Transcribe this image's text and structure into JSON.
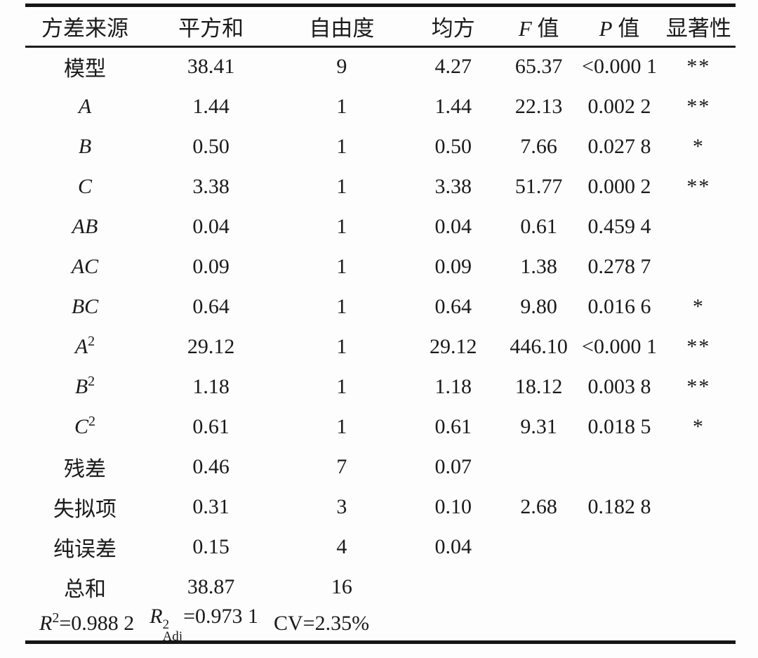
{
  "table": {
    "columns": [
      {
        "italic": "",
        "label": "方差来源"
      },
      {
        "italic": "",
        "label": "平方和"
      },
      {
        "italic": "",
        "label": "自由度"
      },
      {
        "italic": "",
        "label": "均方"
      },
      {
        "italic": "F",
        "label": " 值"
      },
      {
        "italic": "P",
        "label": " 值"
      },
      {
        "italic": "",
        "label": "显著性"
      }
    ],
    "rows": [
      {
        "source": "模型",
        "source_italic": false,
        "source_sup": "",
        "ss": "38.41",
        "df": "9",
        "ms": "4.27",
        "f": "65.37",
        "p": "<0.000 1",
        "sig": "**"
      },
      {
        "source": "A",
        "source_italic": true,
        "source_sup": "",
        "ss": "1.44",
        "df": "1",
        "ms": "1.44",
        "f": "22.13",
        "p": "0.002 2",
        "sig": "**"
      },
      {
        "source": "B",
        "source_italic": true,
        "source_sup": "",
        "ss": "0.50",
        "df": "1",
        "ms": "0.50",
        "f": "7.66",
        "p": "0.027 8",
        "sig": "*"
      },
      {
        "source": "C",
        "source_italic": true,
        "source_sup": "",
        "ss": "3.38",
        "df": "1",
        "ms": "3.38",
        "f": "51.77",
        "p": "0.000 2",
        "sig": "**"
      },
      {
        "source": "AB",
        "source_italic": true,
        "source_sup": "",
        "ss": "0.04",
        "df": "1",
        "ms": "0.04",
        "f": "0.61",
        "p": "0.459 4",
        "sig": ""
      },
      {
        "source": "AC",
        "source_italic": true,
        "source_sup": "",
        "ss": "0.09",
        "df": "1",
        "ms": "0.09",
        "f": "1.38",
        "p": "0.278 7",
        "sig": ""
      },
      {
        "source": "BC",
        "source_italic": true,
        "source_sup": "",
        "ss": "0.64",
        "df": "1",
        "ms": "0.64",
        "f": "9.80",
        "p": "0.016 6",
        "sig": "*"
      },
      {
        "source": "A",
        "source_italic": true,
        "source_sup": "2",
        "ss": "29.12",
        "df": "1",
        "ms": "29.12",
        "f": "446.10",
        "p": "<0.000 1",
        "sig": "**"
      },
      {
        "source": "B",
        "source_italic": true,
        "source_sup": "2",
        "ss": "1.18",
        "df": "1",
        "ms": "1.18",
        "f": "18.12",
        "p": "0.003 8",
        "sig": "**"
      },
      {
        "source": "C",
        "source_italic": true,
        "source_sup": "2",
        "ss": "0.61",
        "df": "1",
        "ms": "0.61",
        "f": "9.31",
        "p": "0.018 5",
        "sig": "*"
      },
      {
        "source": "残差",
        "source_italic": false,
        "source_sup": "",
        "ss": "0.46",
        "df": "7",
        "ms": "0.07",
        "f": "",
        "p": "",
        "sig": ""
      },
      {
        "source": "失拟项",
        "source_italic": false,
        "source_sup": "",
        "ss": "0.31",
        "df": "3",
        "ms": "0.10",
        "f": "2.68",
        "p": "0.182 8",
        "sig": ""
      },
      {
        "source": "纯误差",
        "source_italic": false,
        "source_sup": "",
        "ss": "0.15",
        "df": "4",
        "ms": "0.04",
        "f": "",
        "p": "",
        "sig": ""
      },
      {
        "source": "总和",
        "source_italic": false,
        "source_sup": "",
        "ss": "38.87",
        "df": "16",
        "ms": "",
        "f": "",
        "p": "",
        "sig": ""
      }
    ],
    "footer_stats": [
      {
        "pre_italic": "R",
        "sup": "2",
        "sub": "",
        "text": "=0.988 2"
      },
      {
        "pre_italic": "R",
        "sup": "2",
        "sub": "Adj",
        "text": "=0.973 1"
      },
      {
        "pre_italic": "",
        "sup": "",
        "sub": "",
        "text": "CV=2.35%"
      }
    ],
    "colors": {
      "rule": "#161616",
      "text": "#1a1a1a",
      "background": "#fdfdfd"
    }
  }
}
